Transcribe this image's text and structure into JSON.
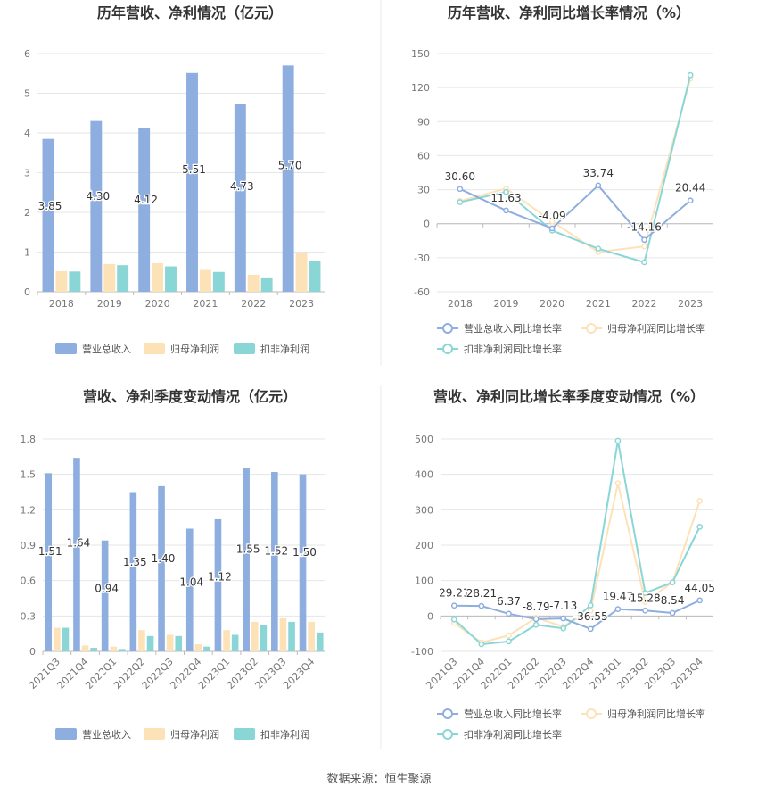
{
  "source": "数据来源：恒生聚源",
  "colors": {
    "revenue": "#8eaedf",
    "net_parent": "#fde2b8",
    "net_deduct": "#8ad6d6",
    "grid": "#e6e6e6",
    "axis_text": "#777777",
    "title_text": "#333333",
    "label_text": "#333333",
    "divider": "#ebebeb"
  },
  "chart_data": [
    {
      "id": "annual-bar",
      "type": "bar",
      "title": "历年营收、净利情况（亿元）",
      "categories": [
        "2018",
        "2019",
        "2020",
        "2021",
        "2022",
        "2023"
      ],
      "ylim": [
        0,
        6
      ],
      "yticks": [
        0,
        1,
        2,
        3,
        4,
        5,
        6
      ],
      "ytick_labels": [
        "0",
        "1",
        "2",
        "3",
        "4",
        "5",
        "6"
      ],
      "series": [
        {
          "name": "营业总收入",
          "color_key": "revenue",
          "values": [
            3.85,
            4.3,
            4.12,
            5.51,
            4.73,
            5.7
          ],
          "labels": [
            "3.85",
            "4.30",
            "4.12",
            "5.51",
            "4.73",
            "5.70"
          ]
        },
        {
          "name": "归母净利润",
          "color_key": "net_parent",
          "values": [
            0.52,
            0.7,
            0.72,
            0.55,
            0.43,
            0.98
          ]
        },
        {
          "name": "扣非净利润",
          "color_key": "net_deduct",
          "values": [
            0.51,
            0.67,
            0.64,
            0.5,
            0.34,
            0.78
          ]
        }
      ]
    },
    {
      "id": "annual-line",
      "type": "line",
      "title": "历年营收、净利同比增长率情况（%）",
      "categories": [
        "2018",
        "2019",
        "2020",
        "2021",
        "2022",
        "2023"
      ],
      "ylim": [
        -60,
        150
      ],
      "yticks": [
        -60,
        -30,
        0,
        30,
        60,
        90,
        120,
        150
      ],
      "ytick_labels": [
        "-60",
        "-30",
        "0",
        "30",
        "60",
        "90",
        "120",
        "150"
      ],
      "series": [
        {
          "name": "营业总收入同比增长率",
          "color_key": "revenue",
          "values": [
            30.6,
            11.63,
            -4.09,
            33.74,
            -14.16,
            20.44
          ],
          "labels": [
            "30.60",
            "11.63",
            "-4.09",
            "33.74",
            "-14.16",
            "20.44"
          ]
        },
        {
          "name": "归母净利润同比增长率",
          "color_key": "net_parent",
          "values": [
            20,
            31,
            2,
            -25,
            -20,
            128
          ]
        },
        {
          "name": "扣非净利润同比增长率",
          "color_key": "net_deduct",
          "values": [
            19,
            28,
            -6,
            -22,
            -34,
            131
          ]
        }
      ]
    },
    {
      "id": "quarter-bar",
      "type": "bar",
      "title": "营收、净利季度变动情况（亿元）",
      "categories": [
        "2021Q3",
        "2021Q4",
        "2022Q1",
        "2022Q2",
        "2022Q3",
        "2022Q4",
        "2023Q1",
        "2023Q2",
        "2023Q3",
        "2023Q4"
      ],
      "ylim": [
        0,
        1.8
      ],
      "yticks": [
        0,
        0.3,
        0.6,
        0.9,
        1.2,
        1.5,
        1.8
      ],
      "ytick_labels": [
        "0",
        "0.3",
        "0.6",
        "0.9",
        "1.2",
        "1.5",
        "1.8"
      ],
      "series": [
        {
          "name": "营业总收入",
          "color_key": "revenue",
          "values": [
            1.51,
            1.64,
            0.94,
            1.35,
            1.4,
            1.04,
            1.12,
            1.55,
            1.52,
            1.5
          ],
          "labels": [
            "1.51",
            "1.64",
            "0.94",
            "1.35",
            "1.40",
            "1.04",
            "1.12",
            "1.55",
            "1.52",
            "1.50"
          ]
        },
        {
          "name": "归母净利润",
          "color_key": "net_parent",
          "values": [
            0.2,
            0.05,
            0.04,
            0.18,
            0.14,
            0.06,
            0.18,
            0.25,
            0.28,
            0.25
          ]
        },
        {
          "name": "扣非净利润",
          "color_key": "net_deduct",
          "values": [
            0.2,
            0.03,
            0.02,
            0.13,
            0.13,
            0.04,
            0.14,
            0.22,
            0.25,
            0.16
          ]
        }
      ]
    },
    {
      "id": "quarter-line",
      "type": "line",
      "title": "营收、净利同比增长率季度变动情况（%）",
      "categories": [
        "2021Q3",
        "2021Q4",
        "2022Q1",
        "2022Q2",
        "2022Q3",
        "2022Q4",
        "2023Q1",
        "2023Q2",
        "2023Q3",
        "2023Q4"
      ],
      "ylim": [
        -100,
        500
      ],
      "yticks": [
        -100,
        0,
        100,
        200,
        300,
        400,
        500
      ],
      "ytick_labels": [
        "-100",
        "0",
        "100",
        "200",
        "300",
        "400",
        "500"
      ],
      "series": [
        {
          "name": "营业总收入同比增长率",
          "color_key": "revenue",
          "values": [
            29.21,
            28.21,
            6.37,
            -8.79,
            -7.13,
            -36.55,
            19.47,
            15.28,
            8.54,
            44.05
          ],
          "labels": [
            "29.21",
            "28.21",
            "6.37",
            "-8.79",
            "-7.13",
            "-36.55",
            "19.47",
            "15.28",
            "8.54",
            "44.05"
          ]
        },
        {
          "name": "归母净利润同比增长率",
          "color_key": "net_parent",
          "values": [
            -20,
            -75,
            -55,
            -5,
            -30,
            15,
            375,
            40,
            95,
            325
          ]
        },
        {
          "name": "扣非净利润同比增长率",
          "color_key": "net_deduct",
          "values": [
            -10,
            -80,
            -72,
            -25,
            -35,
            30,
            495,
            65,
            95,
            252
          ]
        }
      ]
    }
  ]
}
